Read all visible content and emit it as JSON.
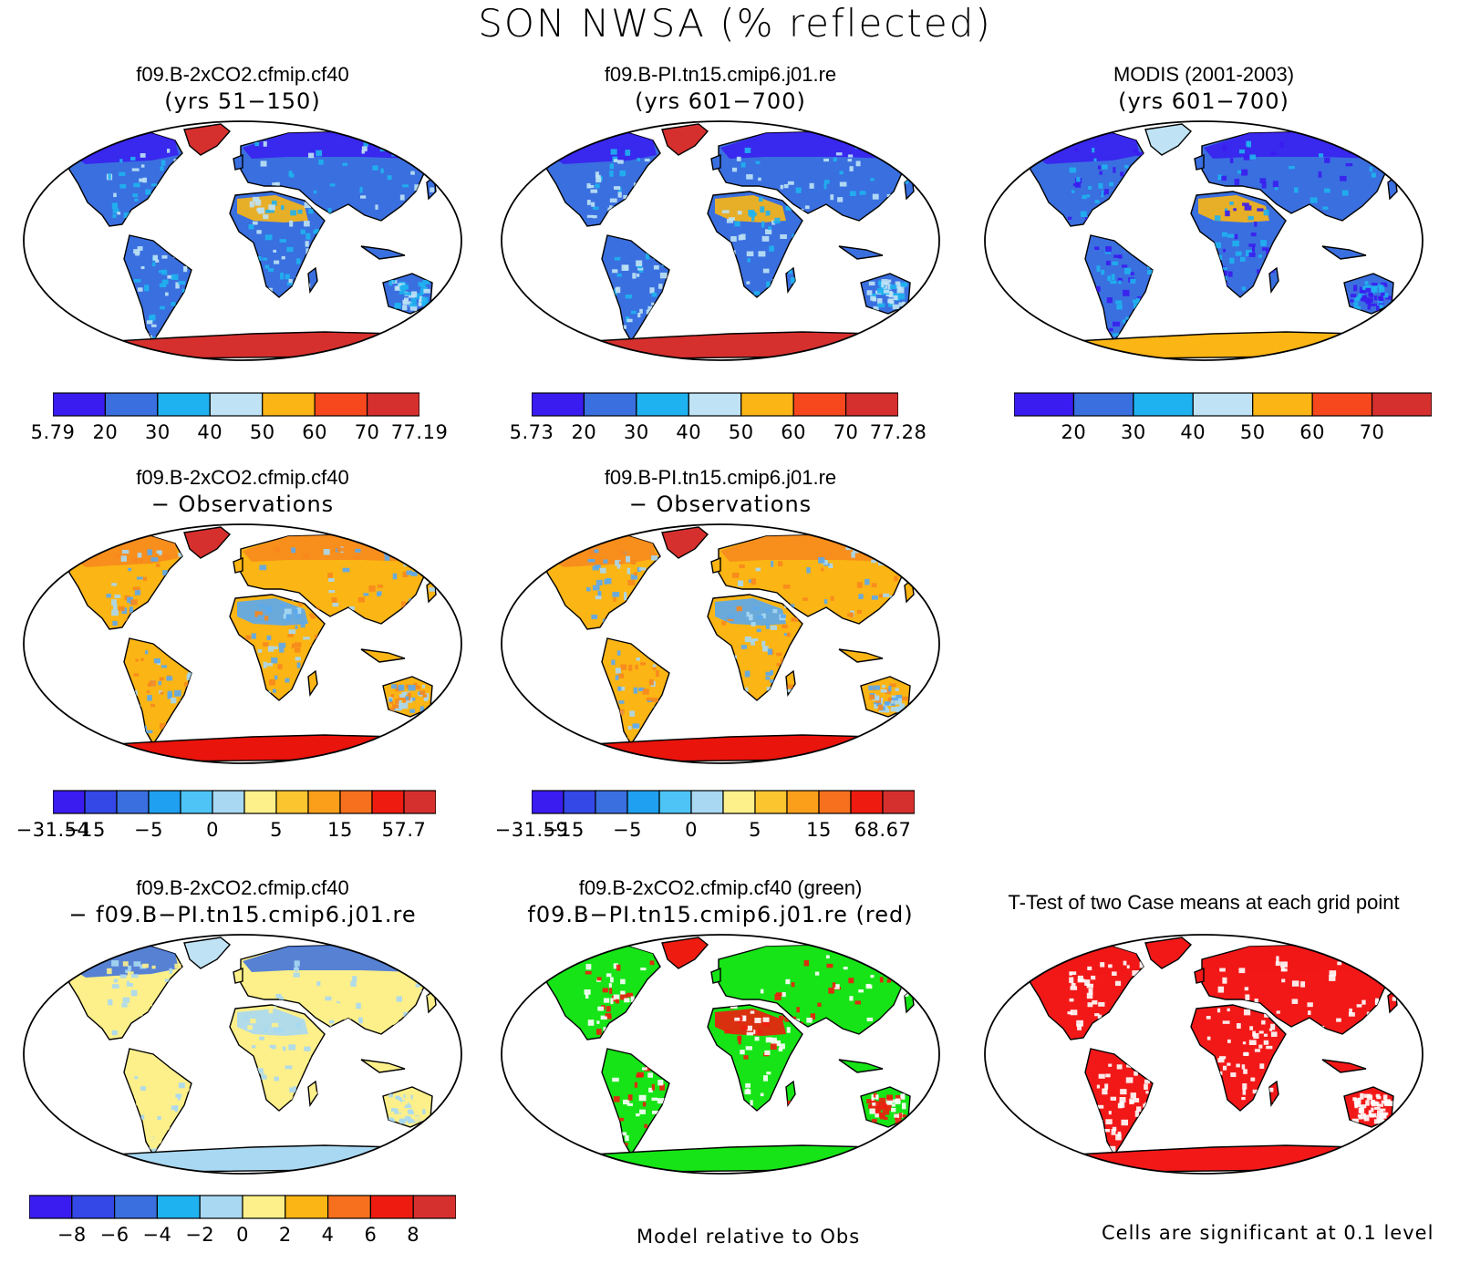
{
  "main_title": "SON NWSA (% reflected)",
  "colors": {
    "ocean": "#ffffff",
    "outline": "#000000",
    "blue_deep": "#3a1cf0",
    "blue_mid": "#3a6fe0",
    "blue_light": "#1fb2f0",
    "blue_pale": "#bfe3f5",
    "orange": "#fbb514",
    "red_orange": "#f7471d",
    "red": "#d6302e",
    "sig_red": "#f21818",
    "green": "#16e416"
  },
  "panels": [
    {
      "id": "case1",
      "title_line1": "f09.B-2xCO2.cfmip.cf40",
      "title_line2": "(yrs 51−150)",
      "land_color": "#3a6fe0",
      "north_color": "#3a1cf0",
      "antarctica_color": "#d6302e",
      "greenland_color": "#d6302e",
      "sahara_color": "#fbb514",
      "colorbar": {
        "colors": [
          "#3a1cf0",
          "#3a6fe0",
          "#1fb2f0",
          "#bfe3f5",
          "#fbb514",
          "#f7471d",
          "#d6302e"
        ],
        "labels": [
          "5.79",
          "20",
          "30",
          "40",
          "50",
          "60",
          "70",
          "77.19"
        ]
      }
    },
    {
      "id": "case2",
      "title_line1": "f09.B-PI.tn15.cmip6.j01.re",
      "title_line2": "(yrs 601−700)",
      "land_color": "#3a6fe0",
      "north_color": "#3a1cf0",
      "antarctica_color": "#d6302e",
      "greenland_color": "#d6302e",
      "sahara_color": "#fbb514",
      "colorbar": {
        "colors": [
          "#3a1cf0",
          "#3a6fe0",
          "#1fb2f0",
          "#bfe3f5",
          "#fbb514",
          "#f7471d",
          "#d6302e"
        ],
        "labels": [
          "5.73",
          "20",
          "30",
          "40",
          "50",
          "60",
          "70",
          "77.28"
        ]
      }
    },
    {
      "id": "obs",
      "title_line1": "MODIS (2001-2003)",
      "title_line2": "(yrs 601−700)",
      "land_color": "#3a6fe0",
      "north_color": "#3a1cf0",
      "antarctica_color": "#fbb514",
      "greenland_color": "#bfe3f5",
      "sahara_color": "#fbb514",
      "colorbar": {
        "colors": [
          "#3a1cf0",
          "#3a6fe0",
          "#1fb2f0",
          "#bfe3f5",
          "#fbb514",
          "#f7471d",
          "#d6302e"
        ],
        "labels": [
          "",
          "20",
          "30",
          "40",
          "50",
          "60",
          "70",
          ""
        ]
      }
    },
    {
      "id": "case1_minus_obs",
      "title_line1": "f09.B-2xCO2.cfmip.cf40",
      "title_line2": "− Observations",
      "land_color": "#fbb514",
      "north_color": "#f7871d",
      "antarctica_color": "#e9140c",
      "greenland_color": "#d6302e",
      "sahara_color": "#5aa9f0",
      "colorbar": {
        "colors": [
          "#3a1cf0",
          "#3348e6",
          "#3a6fe0",
          "#1fa0f0",
          "#4dc4f5",
          "#a8d8f2",
          "#fdf08a",
          "#fbc530",
          "#fb9f1a",
          "#f7701d",
          "#ee1c10",
          "#d6302e"
        ],
        "labels": [
          "−31.54",
          "−15",
          "",
          "−5",
          "",
          "0",
          "",
          "5",
          "",
          "15",
          "",
          "57.7"
        ]
      }
    },
    {
      "id": "case2_minus_obs",
      "title_line1": "f09.B-PI.tn15.cmip6.j01.re",
      "title_line2": "− Observations",
      "land_color": "#fbb514",
      "north_color": "#f7871d",
      "antarctica_color": "#e9140c",
      "greenland_color": "#d6302e",
      "sahara_color": "#5aa9f0",
      "colorbar": {
        "colors": [
          "#3a1cf0",
          "#3348e6",
          "#3a6fe0",
          "#1fa0f0",
          "#4dc4f5",
          "#a8d8f2",
          "#fdf08a",
          "#fbc530",
          "#fb9f1a",
          "#f7701d",
          "#ee1c10",
          "#d6302e"
        ],
        "labels": [
          "−31.59",
          "−15",
          "",
          "−5",
          "",
          "0",
          "",
          "5",
          "",
          "15",
          "",
          "68.67"
        ]
      }
    },
    {
      "id": "case1_minus_case2",
      "title_line1": "f09.B-2xCO2.cfmip.cf40",
      "title_line2": "− f09.B−PI.tn15.cmip6.j01.re",
      "land_color": "#fdf08a",
      "north_color": "#3a6fe0",
      "antarctica_color": "#a8d8f2",
      "greenland_color": "#bfe3f5",
      "sahara_color": "#a8d8f2",
      "colorbar": {
        "colors": [
          "#3a1cf0",
          "#3348e6",
          "#3a6fe0",
          "#1fb2f0",
          "#a8d8f2",
          "#fdf08a",
          "#fbb514",
          "#f7701d",
          "#ee1c10",
          "#d6302e"
        ],
        "labels": [
          "",
          "−8",
          "−6",
          "−4",
          "−2",
          "0",
          "2",
          "4",
          "6",
          "8",
          ""
        ]
      }
    },
    {
      "id": "relative_to_obs",
      "title_line1": "f09.B-2xCO2.cfmip.cf40 (green)",
      "title_line2": "f09.B−PI.tn15.cmip6.j01.re (red)",
      "land_color": "#16e416",
      "north_color": "#16e416",
      "antarctica_color": "#16e416",
      "greenland_color": "#ee1c10",
      "sahara_color": "#ee1c10",
      "footnote": "Model relative to Obs"
    },
    {
      "id": "ttest",
      "title_single": "T-Test of two Case means at each grid point",
      "land_color": "#f21818",
      "north_color": "#f21818",
      "antarctica_color": "#f21818",
      "greenland_color": "#f21818",
      "sahara_color": "#f21818",
      "footnote": "Cells are significant at 0.1 level"
    }
  ]
}
